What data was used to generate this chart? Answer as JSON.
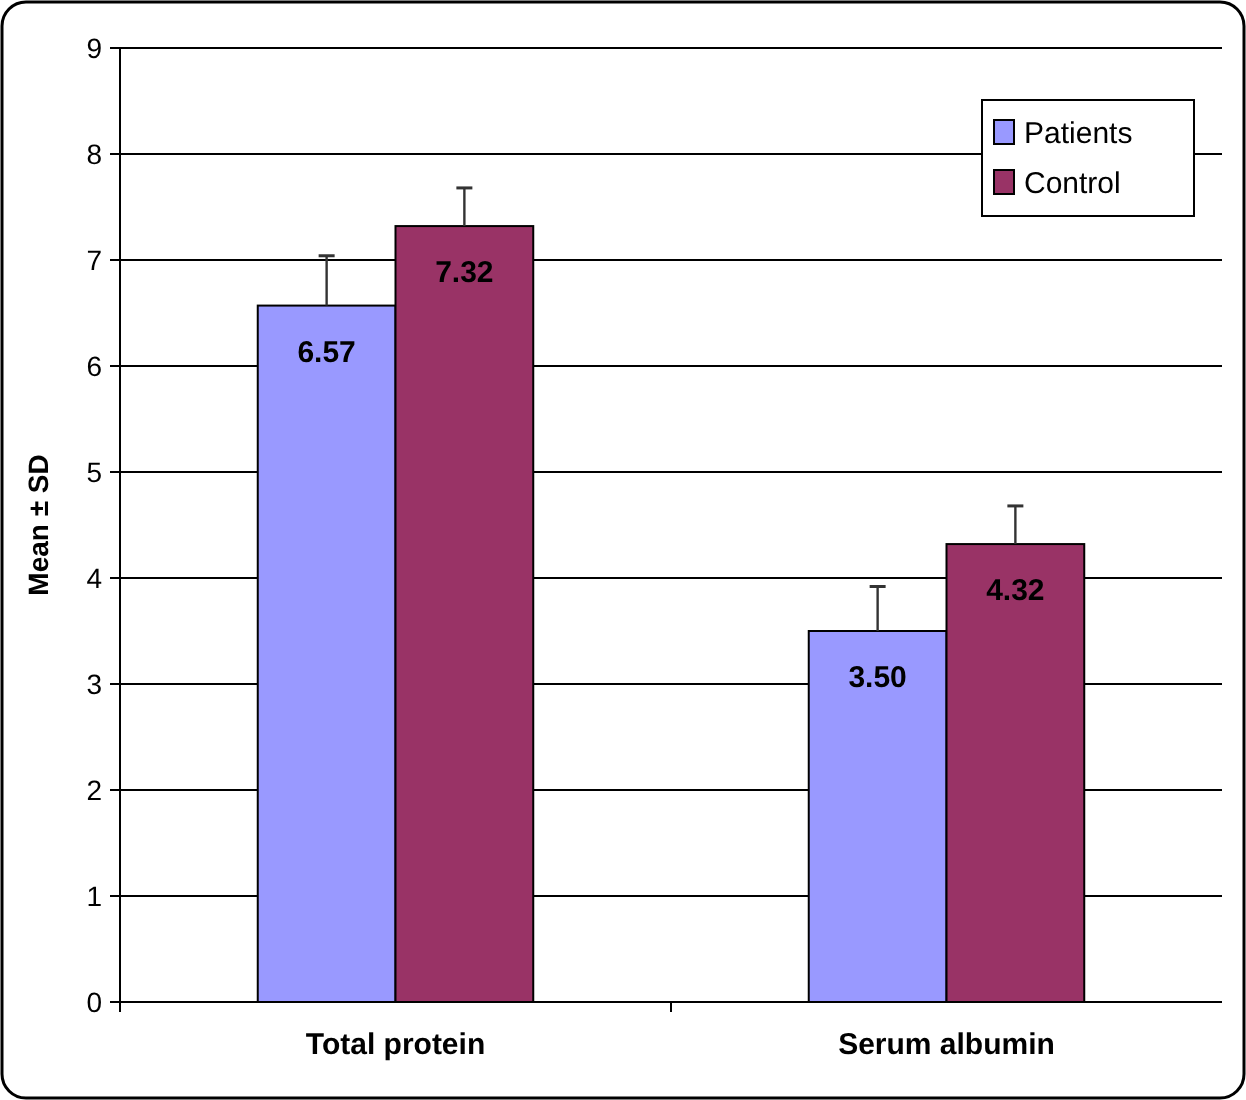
{
  "chart_data": {
    "type": "bar",
    "ylabel": "Mean ± SD",
    "categories": [
      "Total protein",
      "Serum albumin"
    ],
    "series": [
      {
        "name": "Patients",
        "color": "#9999ff",
        "values": [
          6.57,
          3.5
        ],
        "value_labels": [
          "6.57",
          "3.50"
        ],
        "errors": [
          [
            6.57,
            7.04
          ],
          [
            3.5,
            3.92
          ]
        ]
      },
      {
        "name": "Control",
        "color": "#993366",
        "values": [
          7.32,
          4.32
        ],
        "value_labels": [
          "7.32",
          "4.32"
        ],
        "errors": [
          [
            7.32,
            7.68
          ],
          [
            4.32,
            4.68
          ]
        ]
      }
    ],
    "ylim": [
      0,
      9
    ],
    "yticks": [
      0,
      1,
      2,
      3,
      4,
      5,
      6,
      7,
      8,
      9
    ],
    "grid": "y",
    "legend": "top right"
  }
}
